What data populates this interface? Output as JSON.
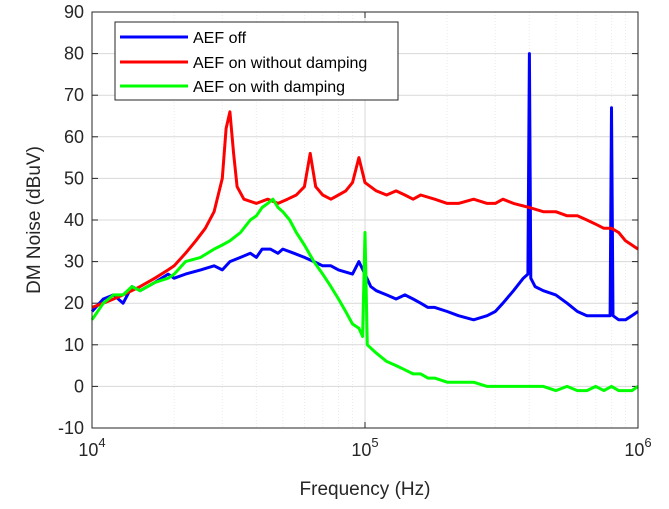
{
  "chart_data": {
    "type": "line",
    "xlabel": "Frequency (Hz)",
    "ylabel": "DM Noise (dBuV)",
    "xscale": "log",
    "xlim": [
      10000,
      1000000
    ],
    "ylim": [
      -10,
      90
    ],
    "yticks": [
      -10,
      0,
      10,
      20,
      30,
      40,
      50,
      60,
      70,
      80,
      90
    ],
    "xticks": [
      {
        "value": 10000,
        "base": "10",
        "exp": "4"
      },
      {
        "value": 100000,
        "base": "10",
        "exp": "5"
      },
      {
        "value": 1000000,
        "base": "10",
        "exp": "6"
      }
    ],
    "grid": true,
    "legend_position": "top-left",
    "series": [
      {
        "name": "AEF off",
        "color": "#0000ff",
        "points": [
          [
            10000,
            18
          ],
          [
            11000,
            21
          ],
          [
            12000,
            22
          ],
          [
            13000,
            20
          ],
          [
            14000,
            24
          ],
          [
            15000,
            23
          ],
          [
            17000,
            25
          ],
          [
            19000,
            27
          ],
          [
            20000,
            26
          ],
          [
            22000,
            27
          ],
          [
            25000,
            28
          ],
          [
            28000,
            29
          ],
          [
            30000,
            28
          ],
          [
            32000,
            30
          ],
          [
            35000,
            31
          ],
          [
            38000,
            32
          ],
          [
            40000,
            31
          ],
          [
            42000,
            33
          ],
          [
            45000,
            33
          ],
          [
            48000,
            32
          ],
          [
            50000,
            33
          ],
          [
            55000,
            32
          ],
          [
            60000,
            31
          ],
          [
            65000,
            30
          ],
          [
            70000,
            29
          ],
          [
            75000,
            29
          ],
          [
            80000,
            28
          ],
          [
            90000,
            27
          ],
          [
            95000,
            30
          ],
          [
            100000,
            27
          ],
          [
            105000,
            24
          ],
          [
            110000,
            23
          ],
          [
            120000,
            22
          ],
          [
            130000,
            21
          ],
          [
            140000,
            22
          ],
          [
            150000,
            21
          ],
          [
            160000,
            20
          ],
          [
            170000,
            19
          ],
          [
            180000,
            19
          ],
          [
            200000,
            18
          ],
          [
            220000,
            17
          ],
          [
            250000,
            16
          ],
          [
            280000,
            17
          ],
          [
            300000,
            18
          ],
          [
            320000,
            20
          ],
          [
            350000,
            23
          ],
          [
            380000,
            26
          ],
          [
            395000,
            27
          ],
          [
            400000,
            80
          ],
          [
            405000,
            26
          ],
          [
            420000,
            24
          ],
          [
            450000,
            23
          ],
          [
            500000,
            22
          ],
          [
            550000,
            20
          ],
          [
            600000,
            18
          ],
          [
            650000,
            17
          ],
          [
            700000,
            17
          ],
          [
            750000,
            17
          ],
          [
            790000,
            17
          ],
          [
            800000,
            67
          ],
          [
            810000,
            17
          ],
          [
            850000,
            16
          ],
          [
            900000,
            16
          ],
          [
            950000,
            17
          ],
          [
            1000000,
            18
          ]
        ]
      },
      {
        "name": "AEF on without damping",
        "color": "#ff0000",
        "points": [
          [
            10000,
            19
          ],
          [
            11000,
            20
          ],
          [
            12000,
            21
          ],
          [
            13000,
            22
          ],
          [
            15000,
            24
          ],
          [
            17000,
            26
          ],
          [
            19000,
            28
          ],
          [
            20000,
            29
          ],
          [
            22000,
            32
          ],
          [
            24000,
            35
          ],
          [
            26000,
            38
          ],
          [
            28000,
            42
          ],
          [
            30000,
            50
          ],
          [
            31000,
            62
          ],
          [
            32000,
            66
          ],
          [
            33000,
            56
          ],
          [
            34000,
            48
          ],
          [
            36000,
            45
          ],
          [
            40000,
            44
          ],
          [
            44000,
            45
          ],
          [
            48000,
            44
          ],
          [
            52000,
            45
          ],
          [
            56000,
            46
          ],
          [
            60000,
            48
          ],
          [
            63000,
            56
          ],
          [
            66000,
            48
          ],
          [
            70000,
            46
          ],
          [
            75000,
            45
          ],
          [
            80000,
            46
          ],
          [
            85000,
            47
          ],
          [
            90000,
            49
          ],
          [
            95000,
            55
          ],
          [
            100000,
            49
          ],
          [
            110000,
            47
          ],
          [
            120000,
            46
          ],
          [
            130000,
            47
          ],
          [
            140000,
            46
          ],
          [
            150000,
            45
          ],
          [
            160000,
            46
          ],
          [
            180000,
            45
          ],
          [
            200000,
            44
          ],
          [
            220000,
            44
          ],
          [
            250000,
            45
          ],
          [
            280000,
            44
          ],
          [
            300000,
            44
          ],
          [
            320000,
            45
          ],
          [
            350000,
            44
          ],
          [
            400000,
            43
          ],
          [
            450000,
            42
          ],
          [
            500000,
            42
          ],
          [
            550000,
            41
          ],
          [
            600000,
            41
          ],
          [
            650000,
            40
          ],
          [
            700000,
            39
          ],
          [
            750000,
            38
          ],
          [
            800000,
            38
          ],
          [
            850000,
            37
          ],
          [
            900000,
            35
          ],
          [
            950000,
            34
          ],
          [
            1000000,
            33
          ]
        ]
      },
      {
        "name": "AEF on with damping",
        "color": "#00ff00",
        "points": [
          [
            10000,
            16
          ],
          [
            11000,
            20
          ],
          [
            12000,
            22
          ],
          [
            13000,
            22
          ],
          [
            14000,
            24
          ],
          [
            15000,
            23
          ],
          [
            17000,
            25
          ],
          [
            19000,
            26
          ],
          [
            20000,
            27
          ],
          [
            22000,
            30
          ],
          [
            25000,
            31
          ],
          [
            28000,
            33
          ],
          [
            30000,
            34
          ],
          [
            32000,
            35
          ],
          [
            35000,
            37
          ],
          [
            38000,
            40
          ],
          [
            40000,
            41
          ],
          [
            42000,
            43
          ],
          [
            44000,
            44
          ],
          [
            46000,
            45
          ],
          [
            48000,
            43
          ],
          [
            50000,
            42
          ],
          [
            53000,
            40
          ],
          [
            56000,
            37
          ],
          [
            60000,
            34
          ],
          [
            65000,
            30
          ],
          [
            70000,
            27
          ],
          [
            75000,
            24
          ],
          [
            80000,
            21
          ],
          [
            85000,
            18
          ],
          [
            90000,
            15
          ],
          [
            95000,
            14
          ],
          [
            98000,
            12
          ],
          [
            100000,
            37
          ],
          [
            102000,
            10
          ],
          [
            110000,
            8
          ],
          [
            120000,
            6
          ],
          [
            130000,
            5
          ],
          [
            140000,
            4
          ],
          [
            150000,
            3
          ],
          [
            160000,
            3
          ],
          [
            170000,
            2
          ],
          [
            180000,
            2
          ],
          [
            200000,
            1
          ],
          [
            220000,
            1
          ],
          [
            250000,
            1
          ],
          [
            280000,
            0
          ],
          [
            300000,
            0
          ],
          [
            350000,
            0
          ],
          [
            400000,
            0
          ],
          [
            450000,
            0
          ],
          [
            500000,
            -1
          ],
          [
            550000,
            0
          ],
          [
            600000,
            -1
          ],
          [
            650000,
            -1
          ],
          [
            700000,
            0
          ],
          [
            750000,
            -1
          ],
          [
            800000,
            0
          ],
          [
            850000,
            -1
          ],
          [
            900000,
            -1
          ],
          [
            950000,
            -1
          ],
          [
            1000000,
            0
          ]
        ]
      }
    ]
  }
}
